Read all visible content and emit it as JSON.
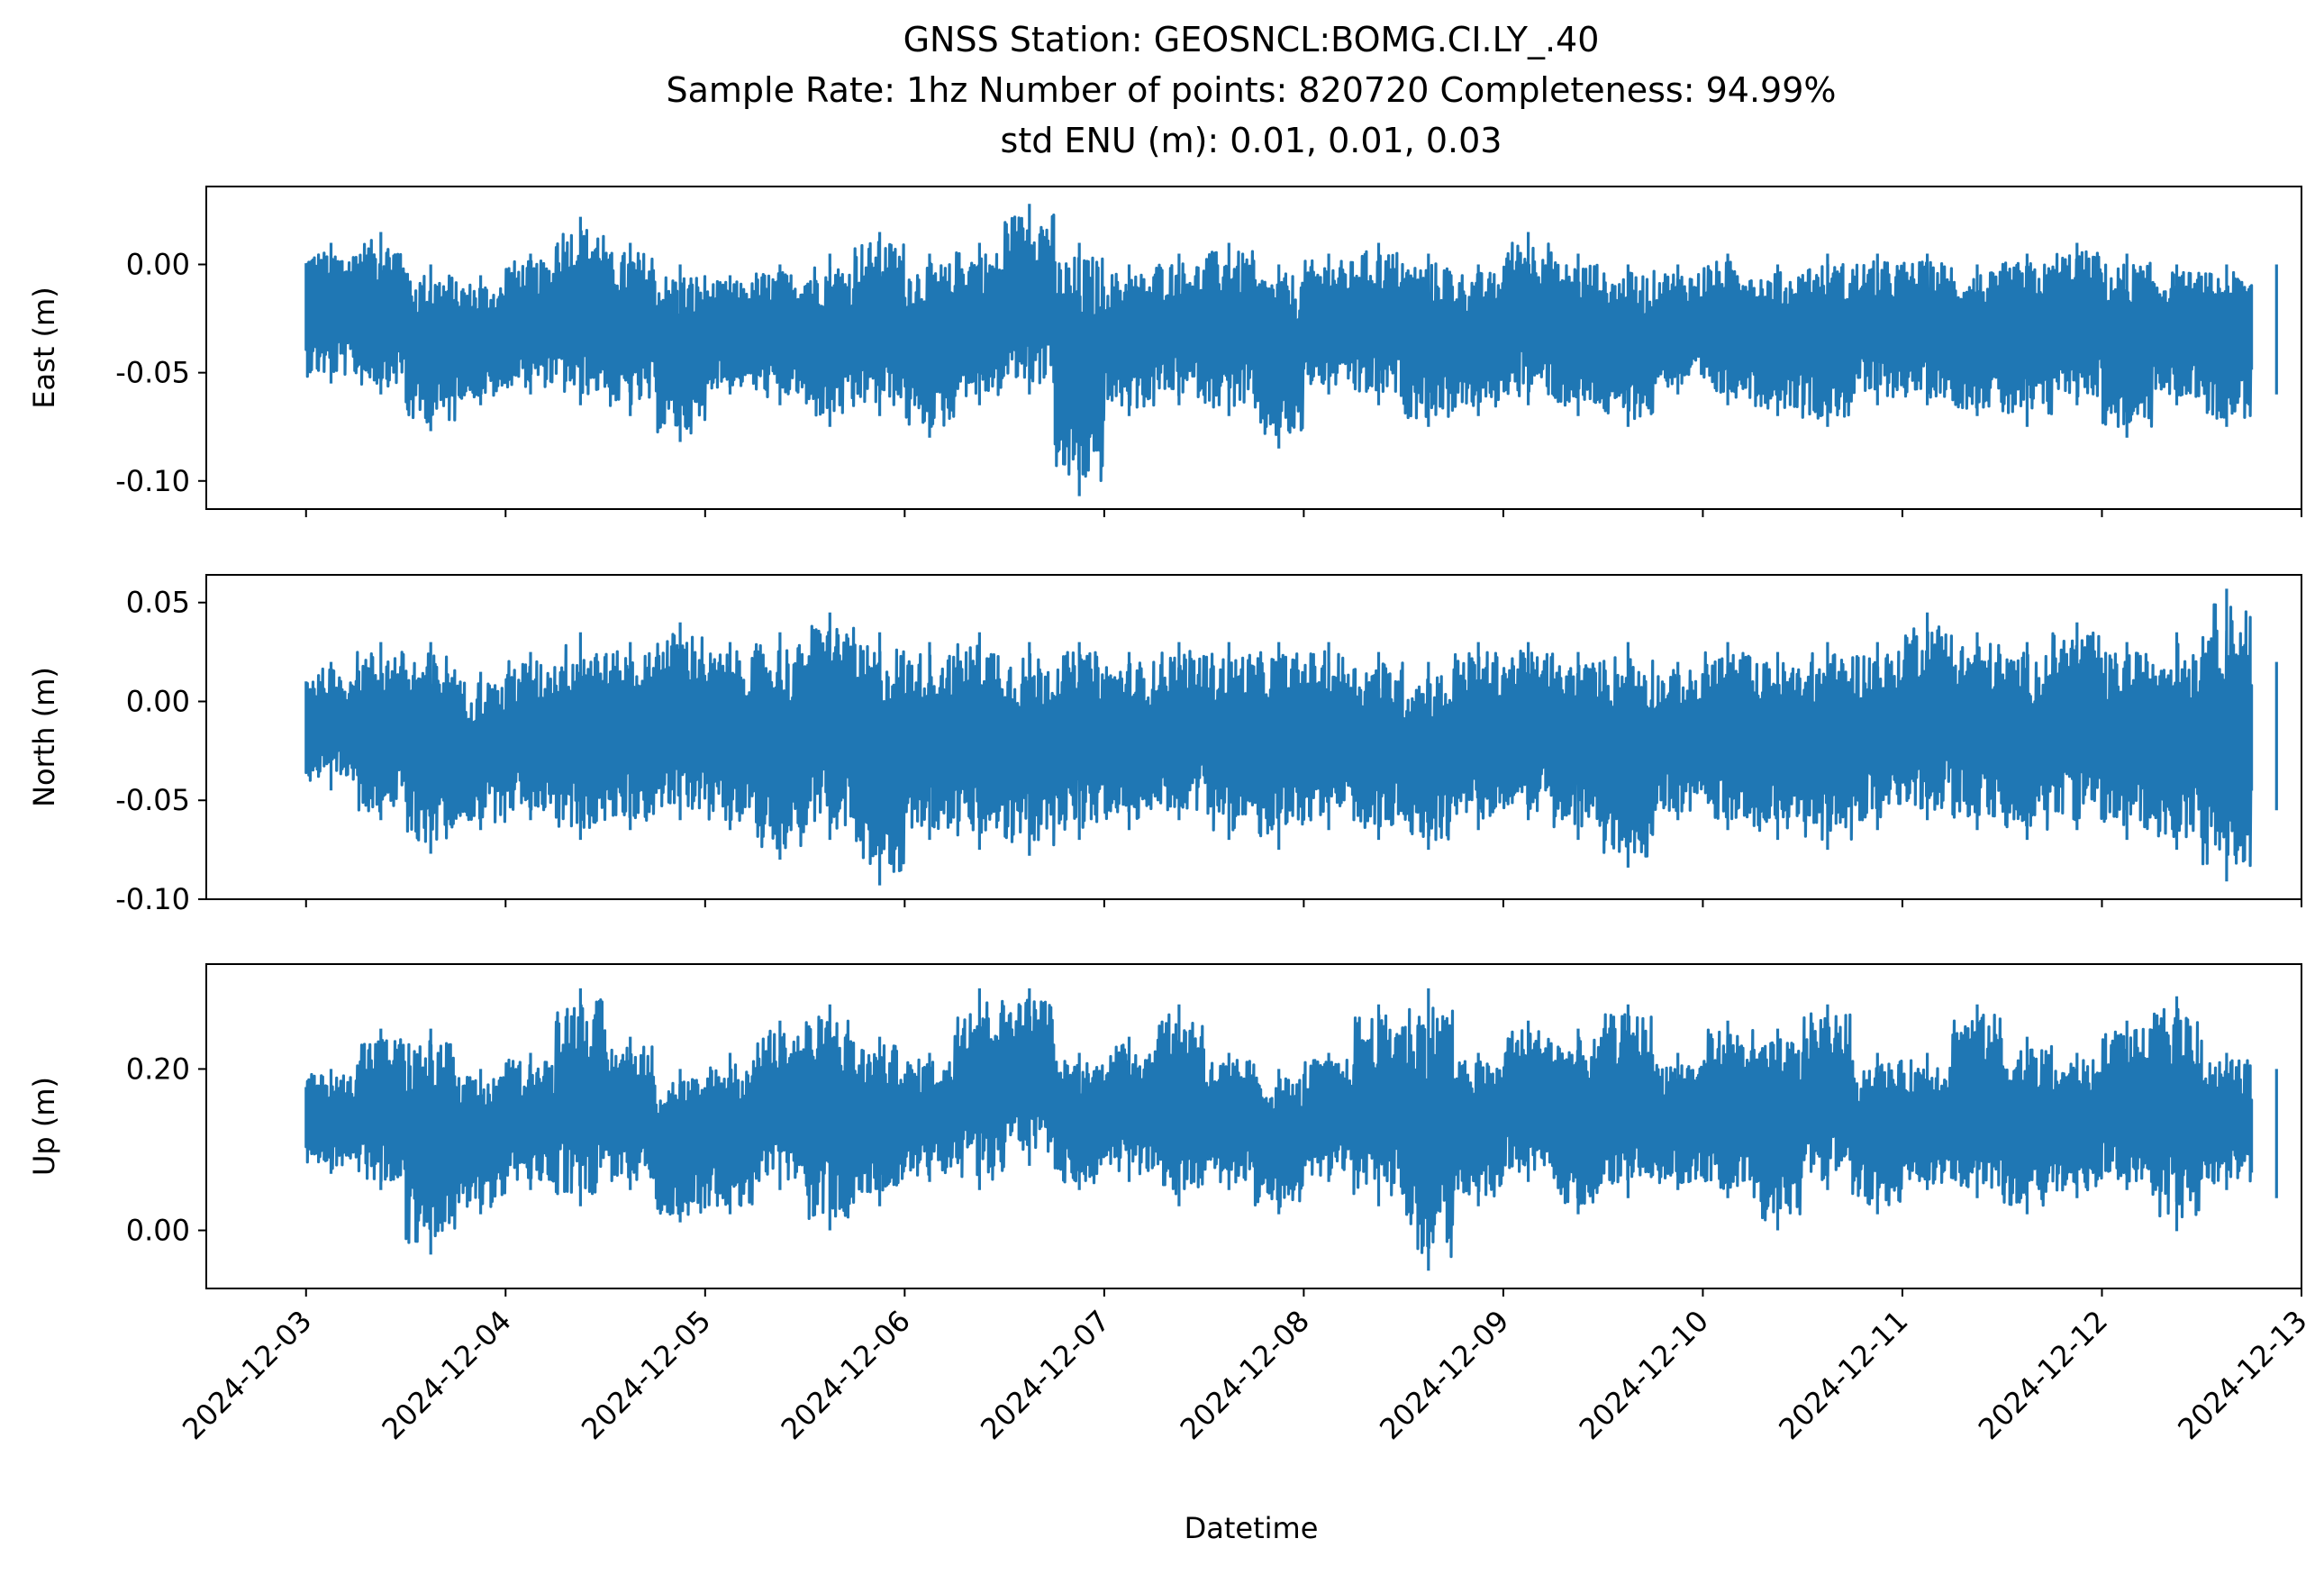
{
  "figure": {
    "title_lines": [
      "GNSS Station: GEOSNCL:BOMG.CI.LY_.40",
      "Sample Rate: 1hz   Number of points: 820720    Completeness:  94.99%",
      "std ENU (m):  0.01, 0.01, 0.03"
    ],
    "xlabel": "Datetime",
    "line_color": "#1f77b4"
  },
  "chart_data": {
    "type": "line",
    "title": "GNSS Station: GEOSNCL:BOMG.CI.LY_.40",
    "subtitle": "Sample Rate: 1hz   Number of points: 820720    Completeness:  94.99% | std ENU (m):  0.01, 0.01, 0.03",
    "xlabel": "Datetime",
    "x_ticks": [
      "2024-12-03",
      "2024-12-04",
      "2024-12-05",
      "2024-12-06",
      "2024-12-07",
      "2024-12-08",
      "2024-12-09",
      "2024-12-10",
      "2024-12-11",
      "2024-12-12",
      "2024-12-13"
    ],
    "x_range": [
      "2024-12-02T12:00",
      "2024-12-13T00:00"
    ],
    "data_range": [
      "2024-12-03T00:00",
      "2024-12-12T18:00"
    ],
    "grid": false,
    "legend": "none",
    "panels": [
      {
        "ylabel": "East (m)",
        "yticks": [
          0.0,
          -0.05,
          -0.1
        ],
        "ytick_labels": [
          "0.00",
          "-0.05",
          "-0.10"
        ],
        "ylim": [
          -0.113,
          0.036
        ],
        "series": [
          {
            "color": "#1f77b4",
            "times": [
              "2024-12-03T00:00",
              "2024-12-03T06:00",
              "2024-12-03T12:00",
              "2024-12-03T18:00",
              "2024-12-04T00:00",
              "2024-12-04T06:00",
              "2024-12-04T12:00",
              "2024-12-04T18:00",
              "2024-12-05T00:00",
              "2024-12-05T06:00",
              "2024-12-05T12:00",
              "2024-12-05T18:00",
              "2024-12-06T00:00",
              "2024-12-06T06:00",
              "2024-12-06T12:00",
              "2024-12-06T18:00",
              "2024-12-07T00:00",
              "2024-12-07T06:00",
              "2024-12-07T12:00",
              "2024-12-07T18:00",
              "2024-12-08T00:00",
              "2024-12-08T06:00",
              "2024-12-08T12:00",
              "2024-12-08T18:00",
              "2024-12-09T00:00",
              "2024-12-09T06:00",
              "2024-12-09T12:00",
              "2024-12-09T18:00",
              "2024-12-10T00:00",
              "2024-12-10T06:00",
              "2024-12-10T12:00",
              "2024-12-10T18:00",
              "2024-12-11T00:00",
              "2024-12-11T06:00",
              "2024-12-11T12:00",
              "2024-12-11T18:00",
              "2024-12-12T00:00",
              "2024-12-12T06:00",
              "2024-12-12T12:00",
              "2024-12-12T18:00"
            ],
            "max": [
              0.01,
              0.015,
              0.0,
              -0.005,
              0.005,
              0.022,
              0.01,
              0.0,
              -0.005,
              0.0,
              0.005,
              0.015,
              0.005,
              0.01,
              0.028,
              0.01,
              0.0,
              0.005,
              0.01,
              0.0,
              0.005,
              0.01,
              0.005,
              0.0,
              0.015,
              0.005,
              0.0,
              0.0,
              0.005,
              0.0,
              0.005,
              0.005,
              0.005,
              0.0,
              0.005,
              0.01,
              0.005,
              0.0,
              0.0,
              0.0
            ],
            "min": [
              -0.055,
              -0.06,
              -0.077,
              -0.065,
              -0.06,
              -0.065,
              -0.07,
              -0.082,
              -0.06,
              -0.065,
              -0.075,
              -0.07,
              -0.08,
              -0.065,
              -0.06,
              -0.107,
              -0.07,
              -0.065,
              -0.07,
              -0.085,
              -0.06,
              -0.065,
              -0.075,
              -0.07,
              -0.065,
              -0.07,
              -0.075,
              -0.06,
              -0.065,
              -0.07,
              -0.075,
              -0.065,
              -0.065,
              -0.07,
              -0.075,
              -0.065,
              -0.08,
              -0.065,
              -0.075,
              -0.06
            ]
          }
        ]
      },
      {
        "ylabel": "North (m)",
        "yticks": [
          0.05,
          0.0,
          -0.05,
          -0.1
        ],
        "ytick_labels": [
          "0.05",
          "0.00",
          "-0.05",
          "-0.10"
        ],
        "ylim": [
          -0.1,
          0.064
        ],
        "series": [
          {
            "color": "#1f77b4",
            "times": [
              "2024-12-03T00:00",
              "2024-12-03T06:00",
              "2024-12-03T12:00",
              "2024-12-03T18:00",
              "2024-12-04T00:00",
              "2024-12-04T06:00",
              "2024-12-04T12:00",
              "2024-12-04T18:00",
              "2024-12-05T00:00",
              "2024-12-05T06:00",
              "2024-12-05T12:00",
              "2024-12-05T18:00",
              "2024-12-06T00:00",
              "2024-12-06T06:00",
              "2024-12-06T12:00",
              "2024-12-06T18:00",
              "2024-12-07T00:00",
              "2024-12-07T06:00",
              "2024-12-07T12:00",
              "2024-12-07T18:00",
              "2024-12-08T00:00",
              "2024-12-08T06:00",
              "2024-12-08T12:00",
              "2024-12-08T18:00",
              "2024-12-09T00:00",
              "2024-12-09T06:00",
              "2024-12-09T12:00",
              "2024-12-09T18:00",
              "2024-12-10T00:00",
              "2024-12-10T06:00",
              "2024-12-10T12:00",
              "2024-12-10T18:00",
              "2024-12-11T00:00",
              "2024-12-11T06:00",
              "2024-12-11T12:00",
              "2024-12-11T18:00",
              "2024-12-12T00:00",
              "2024-12-12T06:00",
              "2024-12-12T12:00",
              "2024-12-12T18:00"
            ],
            "max": [
              0.02,
              0.03,
              0.03,
              0.015,
              0.025,
              0.035,
              0.03,
              0.04,
              0.03,
              0.035,
              0.045,
              0.035,
              0.03,
              0.035,
              0.03,
              0.03,
              0.025,
              0.03,
              0.03,
              0.03,
              0.03,
              0.025,
              0.02,
              0.03,
              0.03,
              0.025,
              0.03,
              0.02,
              0.03,
              0.025,
              0.03,
              0.03,
              0.045,
              0.035,
              0.03,
              0.04,
              0.03,
              0.035,
              0.057,
              0.02
            ],
            "min": [
              -0.045,
              -0.06,
              -0.077,
              -0.065,
              -0.06,
              -0.07,
              -0.065,
              -0.06,
              -0.065,
              -0.08,
              -0.07,
              -0.093,
              -0.07,
              -0.075,
              -0.078,
              -0.07,
              -0.065,
              -0.06,
              -0.07,
              -0.075,
              -0.065,
              -0.07,
              -0.075,
              -0.065,
              -0.06,
              -0.07,
              -0.084,
              -0.06,
              -0.065,
              -0.07,
              -0.075,
              -0.065,
              -0.06,
              -0.065,
              -0.07,
              -0.065,
              -0.07,
              -0.075,
              -0.091,
              -0.055
            ]
          }
        ]
      },
      {
        "ylabel": "Up (m)",
        "yticks": [
          0.2,
          0.0
        ],
        "ytick_labels": [
          "0.20",
          "0.00"
        ],
        "ylim": [
          -0.072,
          0.33
        ],
        "series": [
          {
            "color": "#1f77b4",
            "times": [
              "2024-12-03T00:00",
              "2024-12-03T06:00",
              "2024-12-03T12:00",
              "2024-12-03T18:00",
              "2024-12-04T00:00",
              "2024-12-04T06:00",
              "2024-12-04T12:00",
              "2024-12-04T18:00",
              "2024-12-05T00:00",
              "2024-12-05T06:00",
              "2024-12-05T12:00",
              "2024-12-05T18:00",
              "2024-12-06T00:00",
              "2024-12-06T06:00",
              "2024-12-06T12:00",
              "2024-12-06T18:00",
              "2024-12-07T00:00",
              "2024-12-07T06:00",
              "2024-12-07T12:00",
              "2024-12-07T18:00",
              "2024-12-08T00:00",
              "2024-12-08T06:00",
              "2024-12-08T12:00",
              "2024-12-08T18:00",
              "2024-12-09T00:00",
              "2024-12-09T06:00",
              "2024-12-09T12:00",
              "2024-12-09T18:00",
              "2024-12-10T00:00",
              "2024-12-10T06:00",
              "2024-12-10T12:00",
              "2024-12-10T18:00",
              "2024-12-11T00:00",
              "2024-12-11T06:00",
              "2024-12-11T12:00",
              "2024-12-11T18:00",
              "2024-12-12T00:00",
              "2024-12-12T06:00",
              "2024-12-12T12:00",
              "2024-12-12T18:00"
            ],
            "max": [
              0.2,
              0.25,
              0.25,
              0.2,
              0.22,
              0.3,
              0.24,
              0.2,
              0.22,
              0.26,
              0.28,
              0.24,
              0.22,
              0.3,
              0.3,
              0.22,
              0.24,
              0.28,
              0.22,
              0.2,
              0.22,
              0.28,
              0.3,
              0.22,
              0.26,
              0.25,
              0.28,
              0.22,
              0.26,
              0.25,
              0.28,
              0.22,
              0.22,
              0.28,
              0.24,
              0.22,
              0.26,
              0.29,
              0.22,
              0.2
            ],
            "min": [
              0.07,
              0.05,
              -0.03,
              0.02,
              0.05,
              0.03,
              0.05,
              0.01,
              0.02,
              0.05,
              0.0,
              0.03,
              0.06,
              0.05,
              0.08,
              0.05,
              0.06,
              0.03,
              0.05,
              0.02,
              0.06,
              0.03,
              -0.05,
              0.03,
              0.06,
              0.02,
              0.04,
              0.05,
              0.04,
              0.0,
              0.05,
              0.02,
              0.05,
              0.04,
              0.02,
              0.04,
              0.05,
              -0.001,
              0.05,
              0.04
            ]
          }
        ]
      }
    ]
  }
}
